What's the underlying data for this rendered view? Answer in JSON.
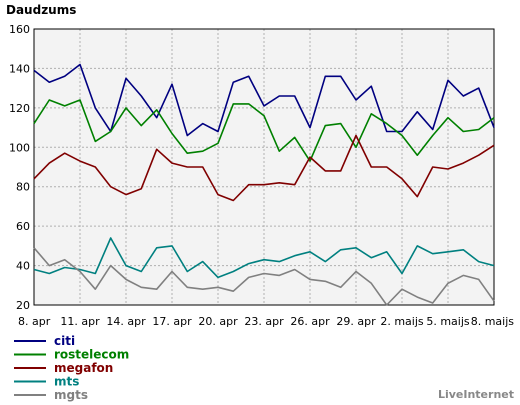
{
  "chart_data": {
    "type": "line",
    "title": "Daudzums",
    "xlabel": "",
    "ylabel": "",
    "ylim": [
      20,
      160
    ],
    "yticks": [
      20,
      40,
      60,
      80,
      100,
      120,
      140,
      160
    ],
    "grid": true,
    "legend_position": "bottom-left",
    "categories": [
      "8. apr",
      "9. apr",
      "10. apr",
      "11. apr",
      "12. apr",
      "13. apr",
      "14. apr",
      "15. apr",
      "16. apr",
      "17. apr",
      "18. apr",
      "19. apr",
      "20. apr",
      "21. apr",
      "22. apr",
      "23. apr",
      "24. apr",
      "25. apr",
      "26. apr",
      "27. apr",
      "28. apr",
      "29. apr",
      "30. apr",
      "1. maijs",
      "2. maijs",
      "3. maijs",
      "4. maijs",
      "5. maijs",
      "6. maijs",
      "7. maijs",
      "8. maijs"
    ],
    "tick_labels": [
      {
        "index": 0,
        "label": "8. apr"
      },
      {
        "index": 3,
        "label": "11. apr"
      },
      {
        "index": 6,
        "label": "14. apr"
      },
      {
        "index": 9,
        "label": "17. apr"
      },
      {
        "index": 12,
        "label": "20. apr"
      },
      {
        "index": 15,
        "label": "23. apr"
      },
      {
        "index": 18,
        "label": "26. apr"
      },
      {
        "index": 21,
        "label": "29. apr"
      },
      {
        "index": 24,
        "label": "2. maijs"
      },
      {
        "index": 27,
        "label": "5. maijs"
      },
      {
        "index": 30,
        "label": "8. maijs"
      }
    ],
    "series": [
      {
        "name": "citi",
        "color": "#000080",
        "values": [
          139,
          133,
          136,
          142,
          120,
          108,
          135,
          126,
          115,
          132,
          106,
          112,
          108,
          133,
          136,
          121,
          126,
          126,
          110,
          136,
          136,
          124,
          131,
          108,
          108,
          118,
          109,
          134,
          126,
          130,
          110
        ]
      },
      {
        "name": "rostelecom",
        "color": "#008000",
        "values": [
          112,
          124,
          121,
          124,
          103,
          108,
          120,
          111,
          119,
          107,
          97,
          98,
          102,
          122,
          122,
          116,
          98,
          105,
          93,
          111,
          112,
          100,
          117,
          112,
          106,
          96,
          106,
          115,
          108,
          109,
          115
        ]
      },
      {
        "name": "megafon",
        "color": "#800000",
        "values": [
          84,
          92,
          97,
          93,
          90,
          80,
          76,
          79,
          99,
          92,
          90,
          90,
          76,
          73,
          81,
          81,
          82,
          81,
          95,
          88,
          88,
          106,
          90,
          90,
          84,
          75,
          90,
          89,
          92,
          96,
          101
        ]
      },
      {
        "name": "mts",
        "color": "#008080",
        "values": [
          38,
          36,
          39,
          38,
          36,
          54,
          40,
          37,
          49,
          50,
          37,
          42,
          34,
          37,
          41,
          43,
          42,
          45,
          47,
          42,
          48,
          49,
          44,
          47,
          36,
          50,
          46,
          47,
          48,
          42,
          40
        ]
      },
      {
        "name": "mgts",
        "color": "#808080",
        "values": [
          49,
          40,
          43,
          37,
          28,
          40,
          33,
          29,
          28,
          37,
          29,
          28,
          29,
          27,
          34,
          36,
          35,
          38,
          33,
          32,
          29,
          37,
          31,
          20,
          28,
          24,
          21,
          31,
          35,
          33,
          22
        ]
      }
    ]
  },
  "brand": "LiveInternet"
}
